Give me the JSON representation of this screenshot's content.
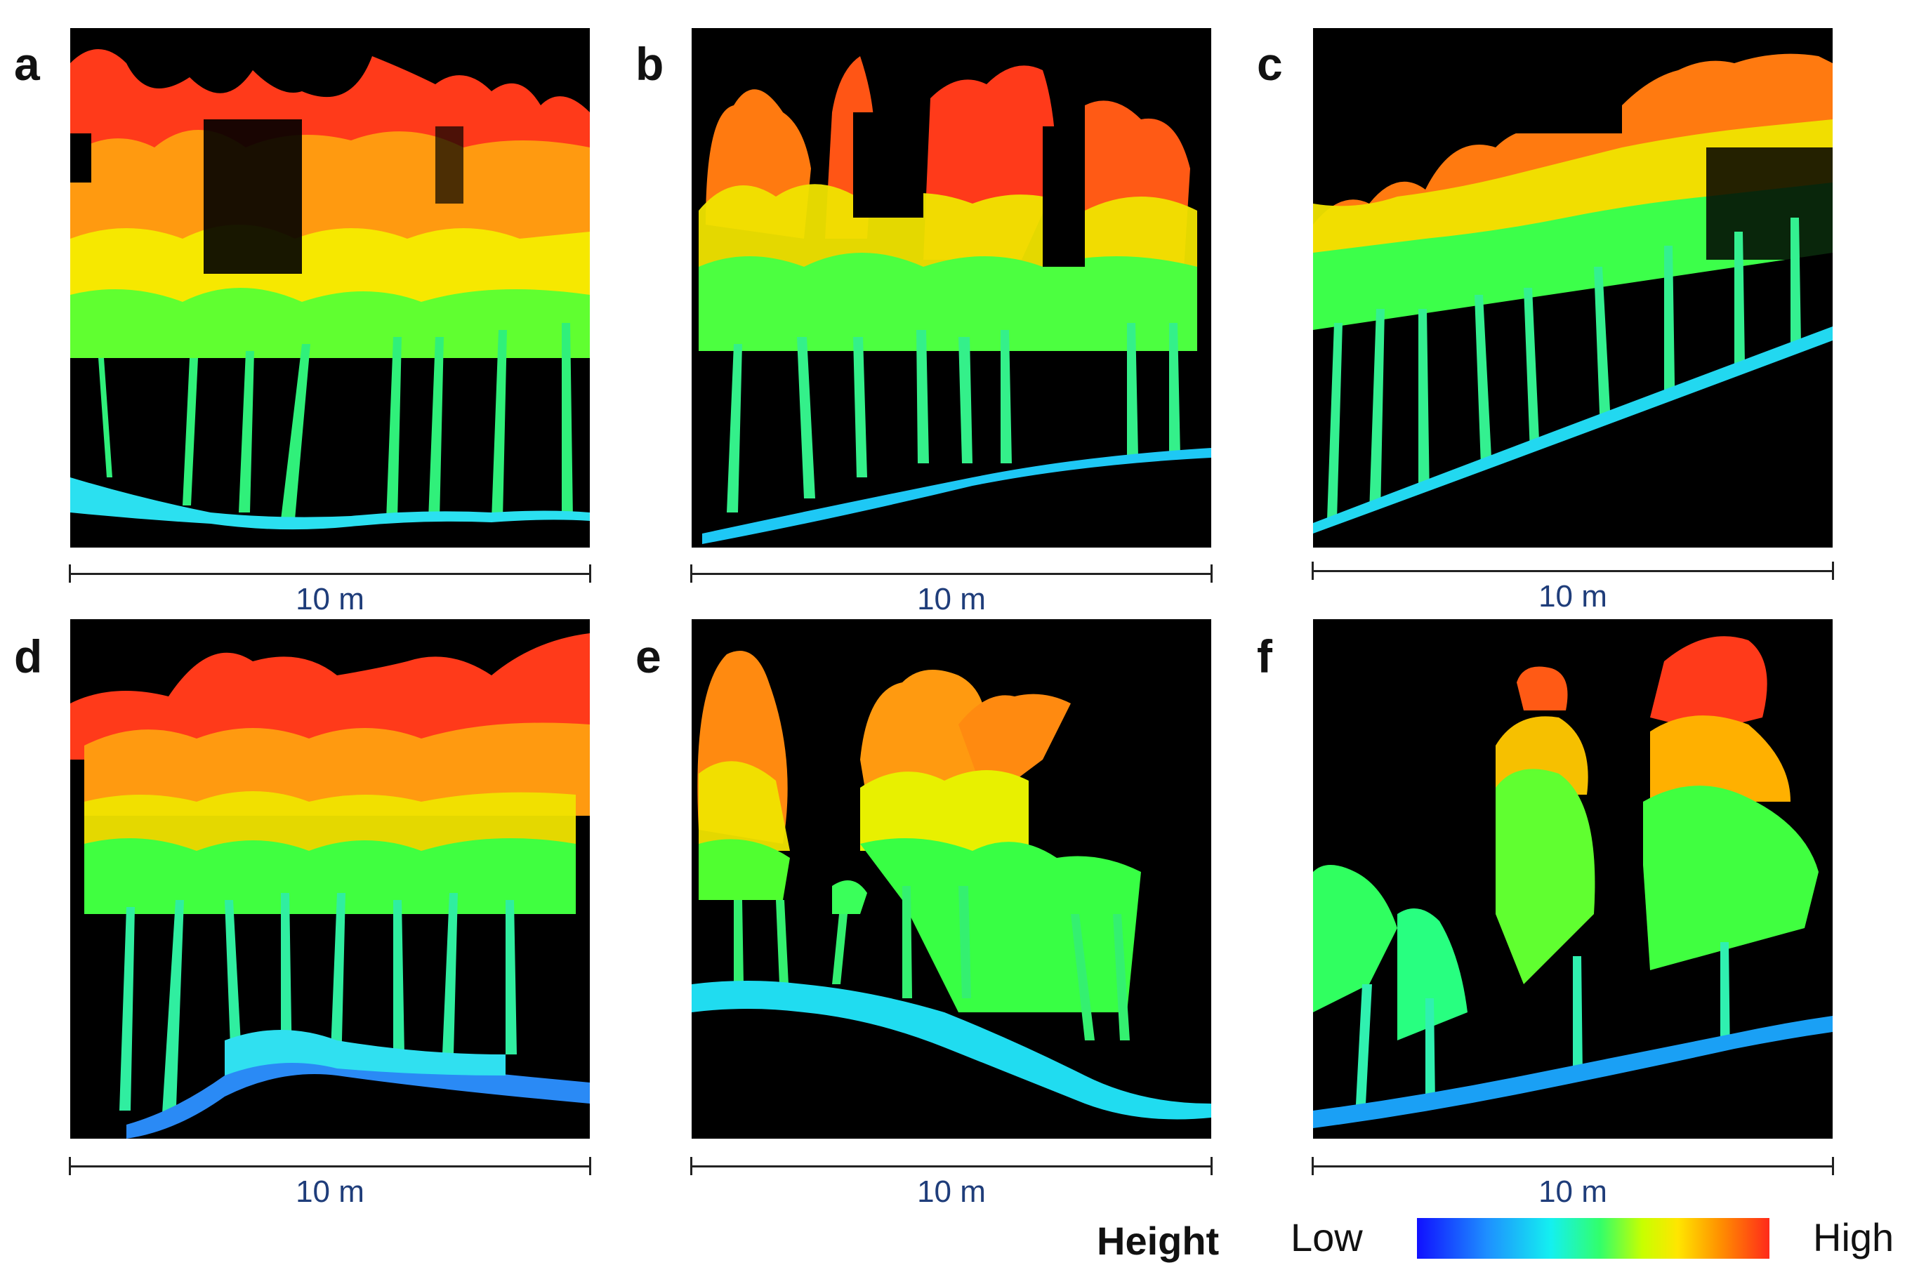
{
  "panels": [
    {
      "letter": "a",
      "scale_label": "10 m"
    },
    {
      "letter": "b",
      "scale_label": "10 m"
    },
    {
      "letter": "c",
      "scale_label": "10 m"
    },
    {
      "letter": "d",
      "scale_label": "10 m"
    },
    {
      "letter": "e",
      "scale_label": "10 m"
    },
    {
      "letter": "f",
      "scale_label": "10 m"
    }
  ],
  "legend": {
    "title": "Height",
    "low_label": "Low",
    "high_label": "High",
    "colors": [
      "#1010ff",
      "#1e90ff",
      "#14f0f0",
      "#32ff6a",
      "#c8ff00",
      "#ffe600",
      "#ff9000",
      "#ff2a1a"
    ]
  }
}
